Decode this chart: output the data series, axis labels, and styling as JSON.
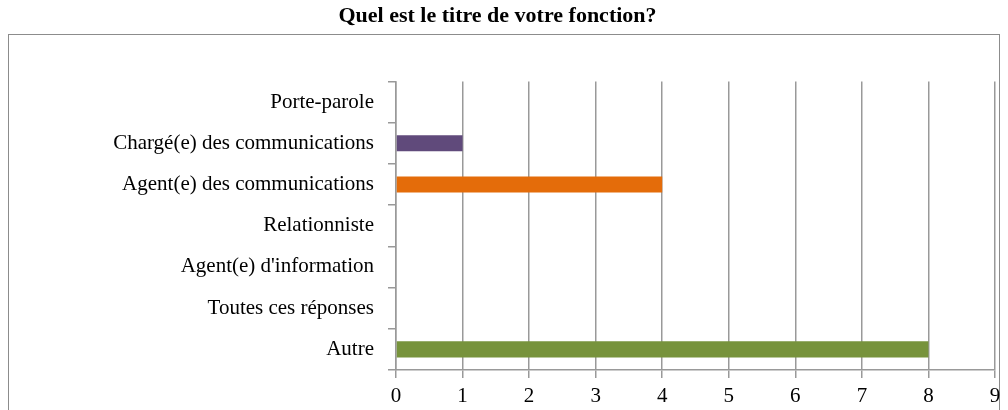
{
  "chart_data": {
    "type": "bar",
    "title": "Quel est le titre de votre fonction?",
    "orientation": "horizontal",
    "categories": [
      "Porte-parole",
      "Chargé(e) des communications",
      "Agent(e) des communications",
      "Relationniste",
      "Agent(e) d'information",
      "Toutes ces réponses",
      "Autre"
    ],
    "values": [
      0,
      1,
      4,
      0,
      0,
      0,
      8
    ],
    "colors": [
      "#31859c",
      "#604a7b",
      "#e46c0a",
      "#376092",
      "#953735",
      "#4f6228",
      "#77933c"
    ],
    "xlim": [
      0,
      9
    ],
    "xticks": [
      0,
      1,
      2,
      3,
      4,
      5,
      6,
      7,
      8,
      9
    ],
    "grid": "x"
  }
}
